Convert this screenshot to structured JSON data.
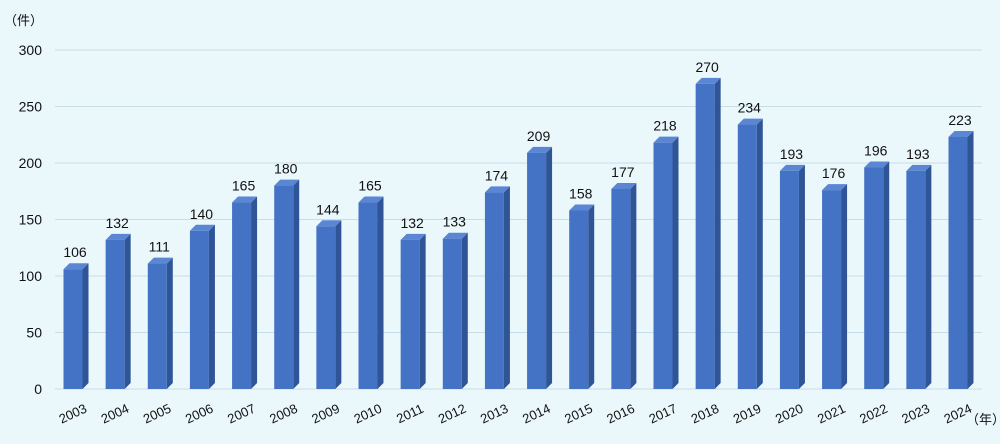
{
  "chart_data": {
    "type": "bar",
    "categories": [
      "2003",
      "2004",
      "2005",
      "2006",
      "2007",
      "2008",
      "2009",
      "2010",
      "2011",
      "2012",
      "2013",
      "2014",
      "2015",
      "2016",
      "2017",
      "2018",
      "2019",
      "2020",
      "2021",
      "2022",
      "2023",
      "2024"
    ],
    "values": [
      106,
      132,
      111,
      140,
      165,
      180,
      144,
      165,
      132,
      133,
      174,
      209,
      158,
      177,
      218,
      270,
      234,
      193,
      176,
      196,
      193,
      223
    ],
    "title": "",
    "y_unit_label": "（件）",
    "x_unit_label": "（年）",
    "ylim": [
      0,
      300
    ],
    "yticks": [
      0,
      50,
      100,
      150,
      200,
      250,
      300
    ],
    "grid": true,
    "legend": "none",
    "colors": {
      "bar_front": "#4472c4",
      "bar_side": "#2f5597",
      "bar_top": "#5a86d4",
      "grid": "#c9dde6"
    }
  }
}
